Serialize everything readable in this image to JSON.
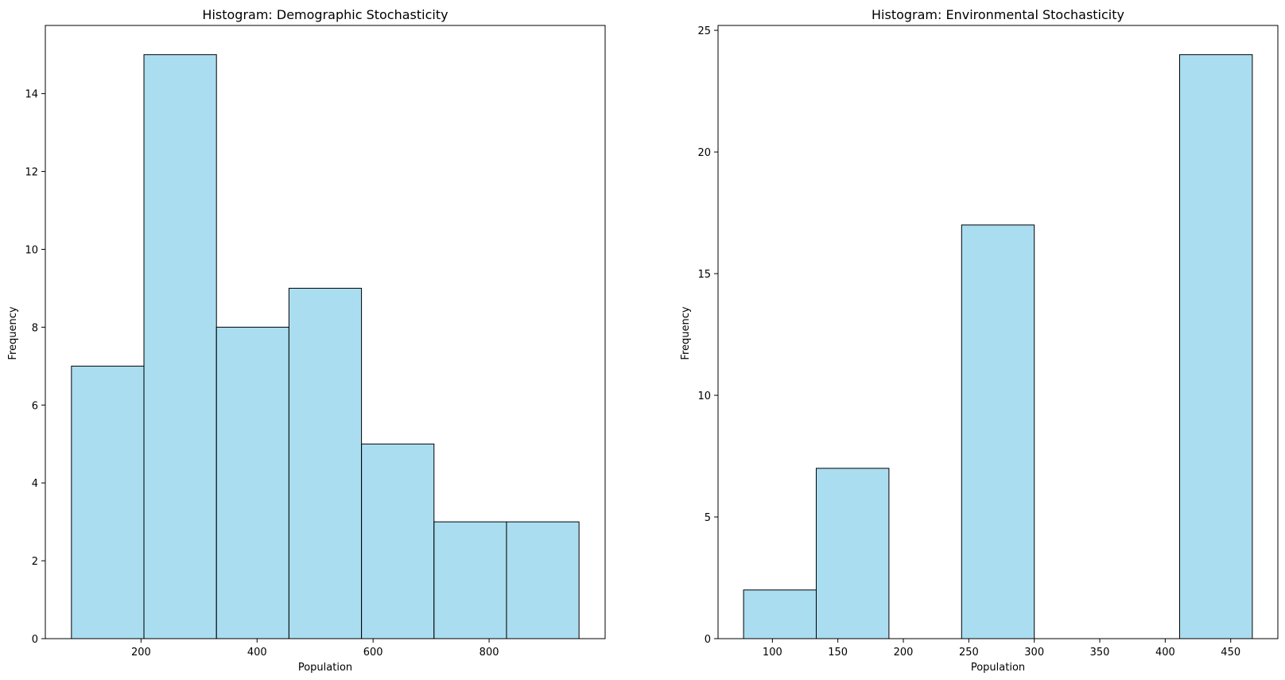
{
  "chart_data": [
    {
      "type": "bar",
      "title": "Histogram: Demographic Stochasticity",
      "xlabel": "Population",
      "ylabel": "Frequency",
      "bins": [
        {
          "x0": 80,
          "x1": 205,
          "count": 7
        },
        {
          "x0": 205,
          "x1": 330,
          "count": 15
        },
        {
          "x0": 330,
          "x1": 455,
          "count": 8
        },
        {
          "x0": 455,
          "x1": 580,
          "count": 9
        },
        {
          "x0": 580,
          "x1": 705,
          "count": 5
        },
        {
          "x0": 705,
          "x1": 830,
          "count": 3
        },
        {
          "x0": 830,
          "x1": 955,
          "count": 3
        }
      ],
      "xlim": [
        35,
        1000
      ],
      "ylim": [
        0,
        15.75
      ],
      "xticks": [
        200,
        400,
        600,
        800
      ],
      "yticks": [
        0,
        2,
        4,
        6,
        8,
        10,
        12,
        14
      ],
      "bar_color": "#87ceeb",
      "edge_color": "#000000",
      "grid": false
    },
    {
      "type": "bar",
      "title": "Histogram: Environmental Stochasticity",
      "xlabel": "Population",
      "ylabel": "Frequency",
      "bins": [
        {
          "x0": 78,
          "x1": 133.5,
          "count": 2
        },
        {
          "x0": 133.5,
          "x1": 189,
          "count": 7
        },
        {
          "x0": 189,
          "x1": 244.5,
          "count": 0
        },
        {
          "x0": 244.5,
          "x1": 300,
          "count": 17
        },
        {
          "x0": 300,
          "x1": 355.5,
          "count": 0
        },
        {
          "x0": 355.5,
          "x1": 411,
          "count": 0
        },
        {
          "x0": 411,
          "x1": 466.5,
          "count": 24
        }
      ],
      "xlim": [
        58.5,
        486
      ],
      "ylim": [
        0,
        25.2
      ],
      "xticks": [
        100,
        150,
        200,
        250,
        300,
        350,
        400,
        450
      ],
      "yticks": [
        0,
        5,
        10,
        15,
        20,
        25
      ],
      "bar_color": "#87ceeb",
      "edge_color": "#000000",
      "grid": false
    }
  ]
}
